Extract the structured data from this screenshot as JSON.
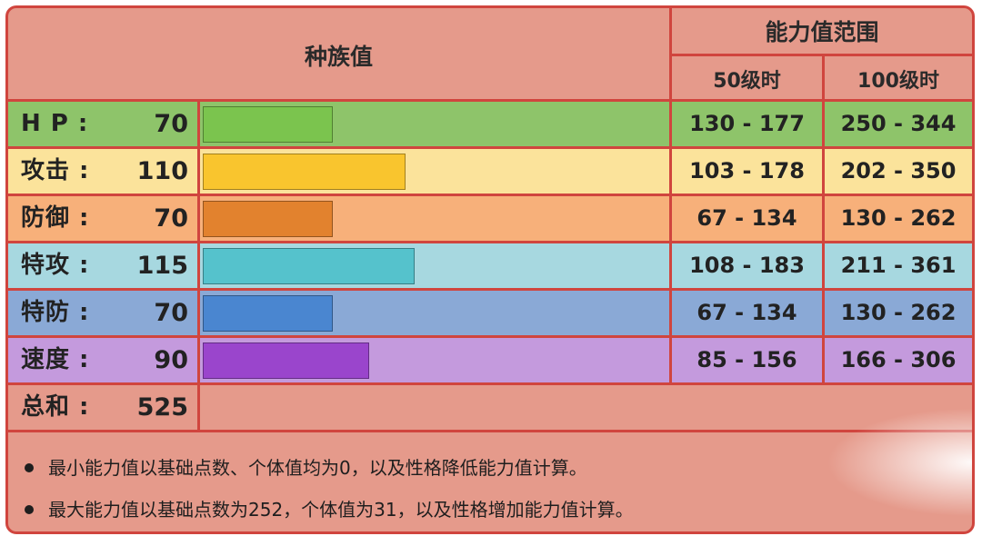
{
  "header": {
    "base_stats": "种族值",
    "stat_range": "能力值范围",
    "level50": "50级时",
    "level100": "100级时"
  },
  "colors": {
    "hp_row": "#8ec46a",
    "hp_bar": "#7bc44e",
    "atk_row": "#fbe39b",
    "atk_bar": "#f9c52e",
    "def_row": "#f7b07a",
    "def_bar": "#e2822e",
    "spa_row": "#a7d8e0",
    "spa_bar": "#55c2cc",
    "spd_row": "#8aa9d6",
    "spd_bar": "#4a86d0",
    "spe_row": "#c49add",
    "spe_bar": "#9a45cc",
    "border": "#d0453e",
    "background": "#e59a8b"
  },
  "stats": [
    {
      "label": "H P :",
      "value": "70",
      "base": 70,
      "lv50": "130 - 177",
      "lv100": "250 - 344"
    },
    {
      "label": "攻击 :",
      "value": "110",
      "base": 110,
      "lv50": "103 - 178",
      "lv100": "202 - 350"
    },
    {
      "label": "防御 :",
      "value": "70",
      "base": 70,
      "lv50": "67 - 134",
      "lv100": "130 - 262"
    },
    {
      "label": "特攻 :",
      "value": "115",
      "base": 115,
      "lv50": "108 - 183",
      "lv100": "211 - 361"
    },
    {
      "label": "特防 :",
      "value": "70",
      "base": 70,
      "lv50": "67 - 134",
      "lv100": "130 - 262"
    },
    {
      "label": "速度 :",
      "value": "90",
      "base": 90,
      "lv50": "85 - 156",
      "lv100": "166 - 306"
    }
  ],
  "total": {
    "label": "总和 :",
    "value": "525"
  },
  "notes": [
    "最小能力值以基础点数、个体值均为0，以及性格降低能力值计算。",
    "最大能力值以基础点数为252，个体值为31，以及性格增加能力值计算。"
  ]
}
